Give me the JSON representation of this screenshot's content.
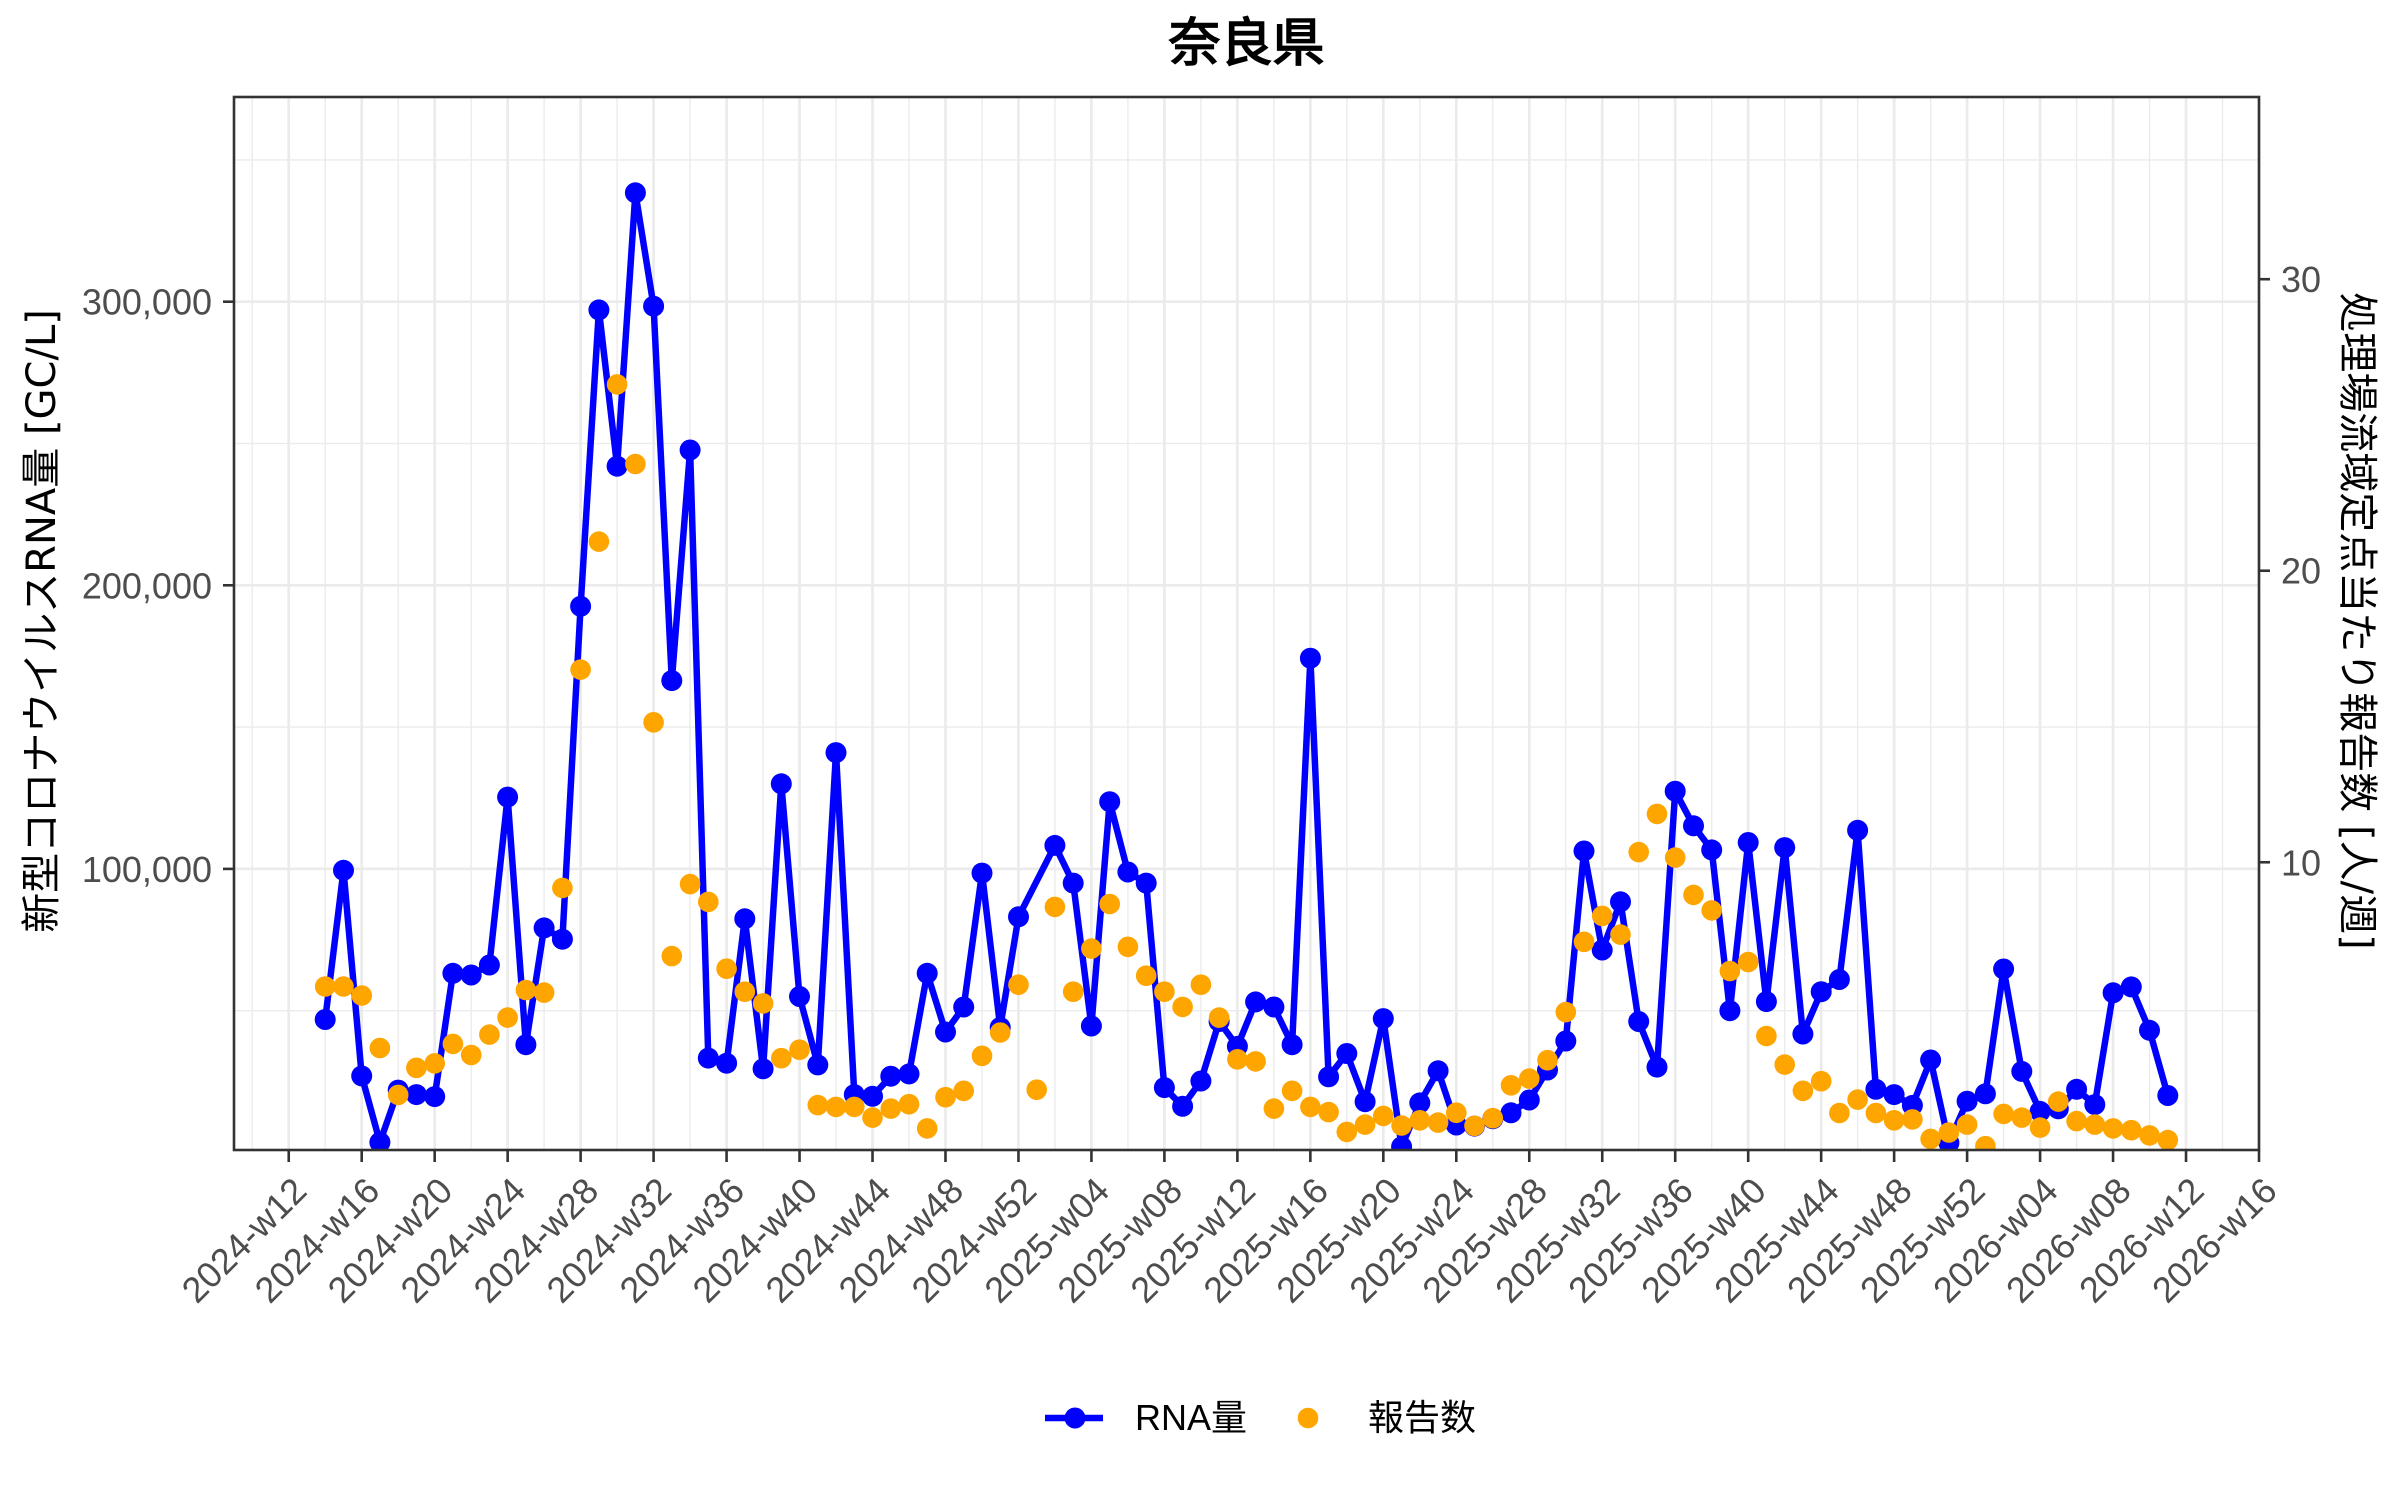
{
  "chart_data": {
    "type": "line",
    "title": "奈良県",
    "xlabel": "",
    "ylabel": "新型コロナウイルスRNA量 [GC/L]",
    "y2label": "処理場流域定点当たり報告数 [人/週]",
    "xlim": [
      "2024-w09",
      "2026-w16"
    ],
    "ylim": [
      880,
      372177
    ],
    "y2lim": [
      0.13,
      36.25
    ],
    "grid": true,
    "legend_position": "bottom",
    "x_ticks": [
      "2024-w12",
      "2024-w16",
      "2024-w20",
      "2024-w24",
      "2024-w28",
      "2024-w32",
      "2024-w36",
      "2024-w40",
      "2024-w44",
      "2024-w48",
      "2024-w52",
      "2025-w04",
      "2025-w08",
      "2025-w12",
      "2025-w16",
      "2025-w20",
      "2025-w24",
      "2025-w28",
      "2025-w32",
      "2025-w36",
      "2025-w40",
      "2025-w44",
      "2025-w48",
      "2025-w52",
      "2026-w04",
      "2026-w08",
      "2026-w12",
      "2026-w16"
    ],
    "y_ticks": [
      {
        "value": 100000,
        "label": "100,000"
      },
      {
        "value": 200000,
        "label": "200,000"
      },
      {
        "value": 300000,
        "label": "300,000"
      }
    ],
    "y_minor_breaks": [
      50000,
      150000,
      250000,
      350000
    ],
    "y2_ticks": [
      {
        "value": 10,
        "label": "10"
      },
      {
        "value": 20,
        "label": "20"
      },
      {
        "value": 30,
        "label": "30"
      }
    ],
    "x": [
      "2024-w14",
      "2024-w15",
      "2024-w16",
      "2024-w17",
      "2024-w18",
      "2024-w19",
      "2024-w20",
      "2024-w21",
      "2024-w22",
      "2024-w23",
      "2024-w24",
      "2024-w25",
      "2024-w26",
      "2024-w27",
      "2024-w28",
      "2024-w29",
      "2024-w30",
      "2024-w31",
      "2024-w32",
      "2024-w33",
      "2024-w34",
      "2024-w35",
      "2024-w36",
      "2024-w37",
      "2024-w38",
      "2024-w39",
      "2024-w40",
      "2024-w41",
      "2024-w42",
      "2024-w43",
      "2024-w44",
      "2024-w45",
      "2024-w46",
      "2024-w47",
      "2024-w48",
      "2024-w49",
      "2024-w50",
      "2024-w51",
      "2024-w52",
      "2025-w01",
      "2025-w02",
      "2025-w03",
      "2025-w04",
      "2025-w05",
      "2025-w06",
      "2025-w07",
      "2025-w08",
      "2025-w09",
      "2025-w10",
      "2025-w11",
      "2025-w12",
      "2025-w13",
      "2025-w14",
      "2025-w15",
      "2025-w16",
      "2025-w17",
      "2025-w18",
      "2025-w19",
      "2025-w20",
      "2025-w21",
      "2025-w22",
      "2025-w23",
      "2025-w24",
      "2025-w25",
      "2025-w26",
      "2025-w27",
      "2025-w28",
      "2025-w29",
      "2025-w30",
      "2025-w31",
      "2025-w32",
      "2025-w33",
      "2025-w34",
      "2025-w35",
      "2025-w36",
      "2025-w37",
      "2025-w38",
      "2025-w39",
      "2025-w40",
      "2025-w41",
      "2025-w42",
      "2025-w43",
      "2025-w44",
      "2025-w45",
      "2025-w46",
      "2025-w47",
      "2025-w48",
      "2025-w49",
      "2025-w50",
      "2025-w51",
      "2025-w52",
      "2026-w01",
      "2026-w02",
      "2026-w03",
      "2026-w04",
      "2026-w05",
      "2026-w06",
      "2026-w07",
      "2026-w08",
      "2026-w09",
      "2026-w10",
      "2026-w11"
    ],
    "series": [
      {
        "name": "RNA量",
        "style": "line+point",
        "axis": "left",
        "color": "#0000FF",
        "values": [
          46900,
          99500,
          27000,
          3600,
          22000,
          20400,
          19700,
          63200,
          62600,
          66100,
          125300,
          38000,
          79200,
          75200,
          192600,
          297100,
          242000,
          338400,
          298400,
          166400,
          247700,
          33300,
          31500,
          82400,
          29500,
          130000,
          55000,
          30900,
          141000,
          20400,
          19800,
          26900,
          27700,
          63200,
          42500,
          51300,
          98500,
          44100,
          83100,
          null,
          108300,
          95000,
          44600,
          123700,
          98900,
          95000,
          22900,
          16300,
          25200,
          46200,
          37400,
          53100,
          51300,
          38000,
          174300,
          26700,
          34900,
          17900,
          47200,
          2000,
          17500,
          28800,
          9700,
          9300,
          11900,
          14000,
          18500,
          29100,
          39300,
          106300,
          71400,
          88400,
          46200,
          30100,
          127400,
          115200,
          106700,
          50000,
          109300,
          53200,
          107500,
          41800,
          56700,
          61000,
          113600,
          22300,
          20400,
          16600,
          32600,
          3400,
          18100,
          20700,
          64700,
          28600,
          14500,
          15400,
          22300,
          16900,
          56300,
          58400,
          43100,
          20100
        ]
      },
      {
        "name": "報告数",
        "style": "point",
        "axis": "right",
        "color": "#FFA500",
        "values": [
          5.74,
          5.74,
          5.43,
          3.63,
          2.02,
          2.95,
          3.1,
          3.77,
          3.39,
          4.09,
          4.67,
          5.62,
          5.53,
          9.12,
          16.61,
          21.0,
          26.39,
          23.66,
          14.8,
          6.78,
          9.25,
          8.64,
          6.35,
          5.56,
          5.16,
          3.28,
          3.57,
          1.67,
          1.61,
          1.61,
          1.24,
          1.55,
          1.7,
          0.87,
          1.94,
          2.16,
          3.36,
          4.16,
          5.8,
          2.2,
          8.47,
          5.56,
          7.04,
          8.57,
          7.1,
          6.11,
          5.56,
          5.04,
          5.8,
          4.67,
          3.24,
          3.17,
          1.55,
          2.16,
          1.61,
          1.43,
          0.75,
          1.0,
          1.3,
          0.97,
          1.15,
          1.07,
          1.41,
          0.96,
          1.22,
          2.35,
          2.58,
          3.21,
          4.86,
          7.27,
          8.16,
          7.52,
          10.35,
          11.66,
          10.16,
          8.88,
          8.35,
          6.27,
          6.58,
          4.04,
          3.06,
          2.16,
          2.49,
          1.4,
          1.86,
          1.4,
          1.15,
          1.18,
          0.51,
          0.73,
          1.0,
          0.26,
          1.37,
          1.24,
          0.9,
          1.79,
          1.12,
          1.0,
          0.87,
          0.81,
          0.63,
          0.47
        ]
      }
    ]
  }
}
